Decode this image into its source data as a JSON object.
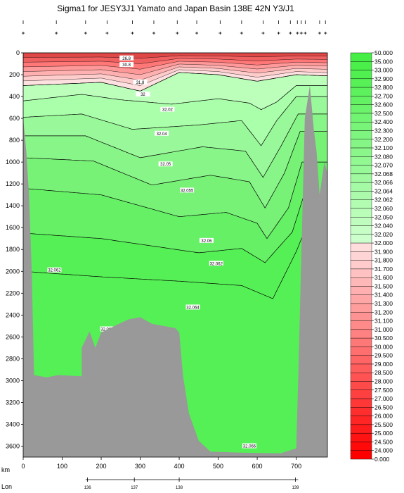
{
  "chart_data": {
    "type": "heatmap",
    "title": "Sigma1 for JESY3J1 Yamato and Japan Basin 138E 42N Y3/J1",
    "xlabel": "km",
    "x2label": "Lon",
    "xlim": [
      0,
      780
    ],
    "ylim": [
      0,
      3700
    ],
    "y_inverted": true,
    "x_ticks": [
      0,
      100,
      200,
      300,
      400,
      500,
      600,
      700
    ],
    "y_ticks": [
      0,
      200,
      400,
      600,
      800,
      1000,
      1200,
      1400,
      1600,
      1800,
      2000,
      2200,
      2400,
      2600,
      2800,
      3000,
      3200,
      3400,
      3600
    ],
    "lon_ticks": [
      {
        "label": "136",
        "km": 165
      },
      {
        "label": "137",
        "km": 285
      },
      {
        "label": "138",
        "km": 400
      },
      {
        "label": "139",
        "km": 698
      }
    ],
    "station_km": [
      0,
      85,
      160,
      215,
      280,
      335,
      395,
      445,
      505,
      560,
      615,
      655,
      685,
      703,
      713,
      723,
      760,
      775
    ],
    "colorbar_levels": [
      "50.000",
      "35.000",
      "33.000",
      "32.900",
      "32.800",
      "32.700",
      "32.600",
      "32.500",
      "32.400",
      "32.300",
      "32.200",
      "32.100",
      "32.080",
      "32.070",
      "32.068",
      "32.066",
      "32.064",
      "32.062",
      "32.060",
      "32.050",
      "32.040",
      "32.020",
      "32.000",
      "31.900",
      "31.800",
      "31.700",
      "31.600",
      "31.500",
      "31.400",
      "31.300",
      "31.200",
      "31.100",
      "31.000",
      "30.500",
      "30.000",
      "29.500",
      "29.000",
      "28.500",
      "28.000",
      "27.500",
      "27.000",
      "26.500",
      "26.000",
      "25.500",
      "25.000",
      "24.500",
      "24.000",
      "0.000"
    ],
    "contour_labels": [
      {
        "text": "26.8",
        "km": 265,
        "depth": 50
      },
      {
        "text": "30.8",
        "km": 265,
        "depth": 110
      },
      {
        "text": "31.8",
        "km": 300,
        "depth": 270
      },
      {
        "text": "32",
        "km": 307,
        "depth": 380
      },
      {
        "text": "32.02",
        "km": 370,
        "depth": 520
      },
      {
        "text": "32.04",
        "km": 355,
        "depth": 740
      },
      {
        "text": "32.05",
        "km": 365,
        "depth": 1020
      },
      {
        "text": "32.055",
        "km": 420,
        "depth": 1260
      },
      {
        "text": "32.06",
        "km": 470,
        "depth": 1720
      },
      {
        "text": "32.062",
        "km": 80,
        "depth": 1990
      },
      {
        "text": "32.062",
        "km": 495,
        "depth": 1930
      },
      {
        "text": "32.064",
        "km": 435,
        "depth": 2330
      },
      {
        "text": "32.064",
        "km": 215,
        "depth": 2530
      },
      {
        "text": "32.066",
        "km": 580,
        "depth": 3600
      }
    ],
    "isopycnals": [
      {
        "value": 32.0,
        "depth_at_km": [
          [
            0,
            300
          ],
          [
            200,
            270
          ],
          [
            300,
            350
          ],
          [
            400,
            180
          ],
          [
            500,
            200
          ],
          [
            600,
            260
          ],
          [
            700,
            200
          ],
          [
            770,
            210
          ]
        ]
      },
      {
        "value": 32.02,
        "depth_at_km": [
          [
            0,
            440
          ],
          [
            150,
            380
          ],
          [
            250,
            430
          ],
          [
            380,
            470
          ],
          [
            500,
            420
          ],
          [
            580,
            460
          ],
          [
            610,
            520
          ],
          [
            650,
            450
          ],
          [
            700,
            300
          ]
        ]
      },
      {
        "value": 32.04,
        "depth_at_km": [
          [
            0,
            590
          ],
          [
            150,
            560
          ],
          [
            280,
            700
          ],
          [
            450,
            660
          ],
          [
            560,
            620
          ],
          [
            610,
            850
          ],
          [
            650,
            620
          ],
          [
            700,
            400
          ]
        ]
      },
      {
        "value": 32.05,
        "depth_at_km": [
          [
            0,
            760
          ],
          [
            160,
            760
          ],
          [
            300,
            960
          ],
          [
            460,
            860
          ],
          [
            570,
            900
          ],
          [
            615,
            1140
          ],
          [
            660,
            860
          ],
          [
            705,
            560
          ]
        ]
      },
      {
        "value": 32.055,
        "depth_at_km": [
          [
            0,
            960
          ],
          [
            180,
            990
          ],
          [
            330,
            1210
          ],
          [
            480,
            1120
          ],
          [
            580,
            1180
          ],
          [
            620,
            1420
          ],
          [
            670,
            1100
          ],
          [
            710,
            720
          ]
        ]
      },
      {
        "value": 32.06,
        "depth_at_km": [
          [
            0,
            1240
          ],
          [
            200,
            1300
          ],
          [
            400,
            1500
          ],
          [
            520,
            1460
          ],
          [
            600,
            1560
          ],
          [
            625,
            1700
          ],
          [
            680,
            1420
          ],
          [
            715,
            1000
          ]
        ]
      },
      {
        "value": 32.062,
        "depth_at_km": [
          [
            0,
            1650
          ],
          [
            200,
            1700
          ],
          [
            450,
            1830
          ],
          [
            560,
            1790
          ],
          [
            620,
            1920
          ],
          [
            690,
            1640
          ],
          [
            720,
            1300
          ]
        ]
      },
      {
        "value": 32.064,
        "depth_at_km": [
          [
            0,
            2000
          ],
          [
            200,
            2050
          ],
          [
            400,
            2090
          ],
          [
            560,
            2130
          ],
          [
            640,
            2250
          ],
          [
            700,
            1820
          ],
          [
            725,
            1600
          ]
        ]
      }
    ]
  }
}
